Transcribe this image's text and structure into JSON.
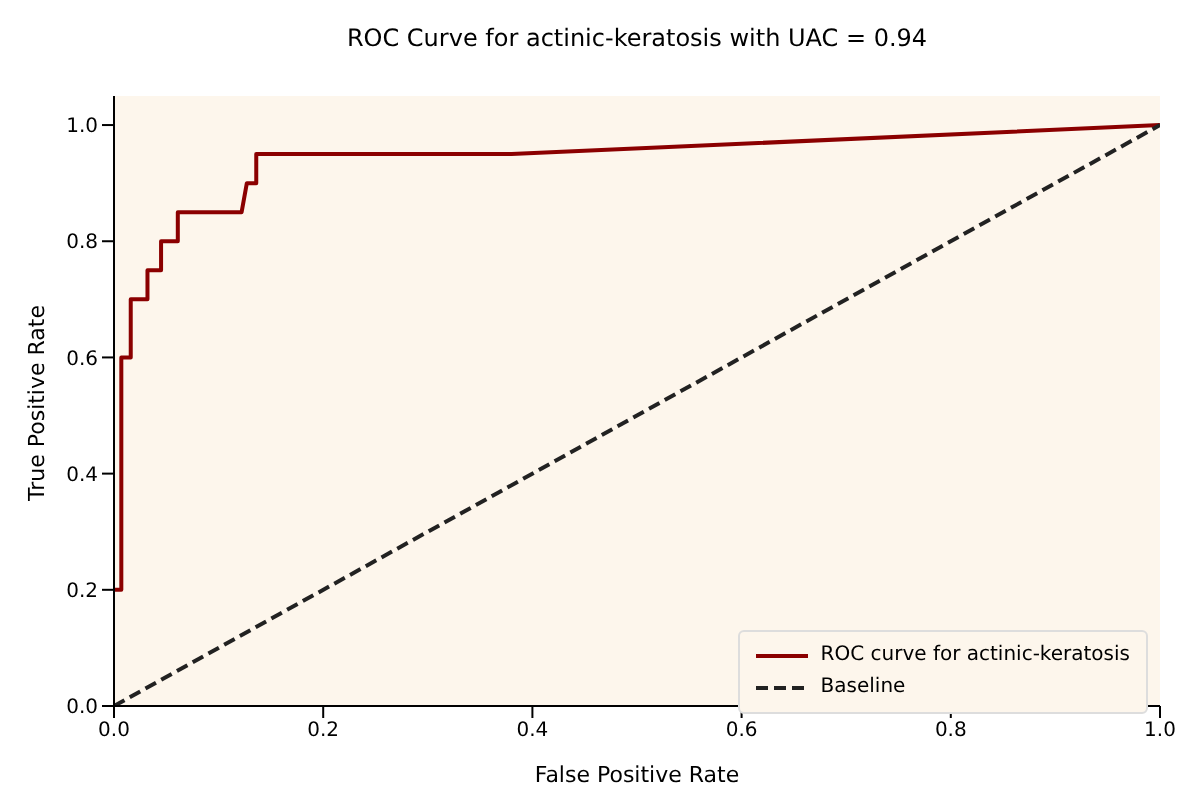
{
  "chart_data": {
    "type": "line",
    "title": "ROC Curve for actinic-keratosis with UAC = 0.94",
    "xlabel": "False Positive Rate",
    "ylabel": "True Positive Rate",
    "series": [
      {
        "name": "ROC curve for actinic-keratosis",
        "color": "#8b0000",
        "line_style": "solid",
        "x": [
          0,
          0.007,
          0.007,
          0.016,
          0.016,
          0.032,
          0.032,
          0.045,
          0.045,
          0.061,
          0.061,
          0.122,
          0.127,
          0.136,
          0.136,
          0.38,
          1
        ],
        "values": [
          0.2,
          0.2,
          0.6,
          0.6,
          0.7,
          0.7,
          0.75,
          0.75,
          0.8,
          0.8,
          0.85,
          0.85,
          0.9,
          0.9,
          0.95,
          0.95,
          1
        ]
      },
      {
        "name": "Baseline",
        "color": "#222222",
        "line_style": "dashed",
        "x": [
          0,
          1
        ],
        "values": [
          0,
          1
        ]
      }
    ],
    "xlim": [
      0,
      1
    ],
    "ylim": [
      0,
      1.05
    ],
    "xticks": [
      {
        "value": 0,
        "label": "0.0"
      },
      {
        "value": 0.2,
        "label": "0.2"
      },
      {
        "value": 0.4,
        "label": "0.4"
      },
      {
        "value": 0.6,
        "label": "0.6"
      },
      {
        "value": 0.8,
        "label": "0.8"
      },
      {
        "value": 1,
        "label": "1.0"
      }
    ],
    "yticks": [
      {
        "value": 0,
        "label": "0.0"
      },
      {
        "value": 0.2,
        "label": "0.2"
      },
      {
        "value": 0.4,
        "label": "0.4"
      },
      {
        "value": 0.6,
        "label": "0.6"
      },
      {
        "value": 0.8,
        "label": "0.8"
      },
      {
        "value": 1,
        "label": "1.0"
      }
    ],
    "grid": false,
    "legend": "bottom right",
    "marker": "none"
  }
}
